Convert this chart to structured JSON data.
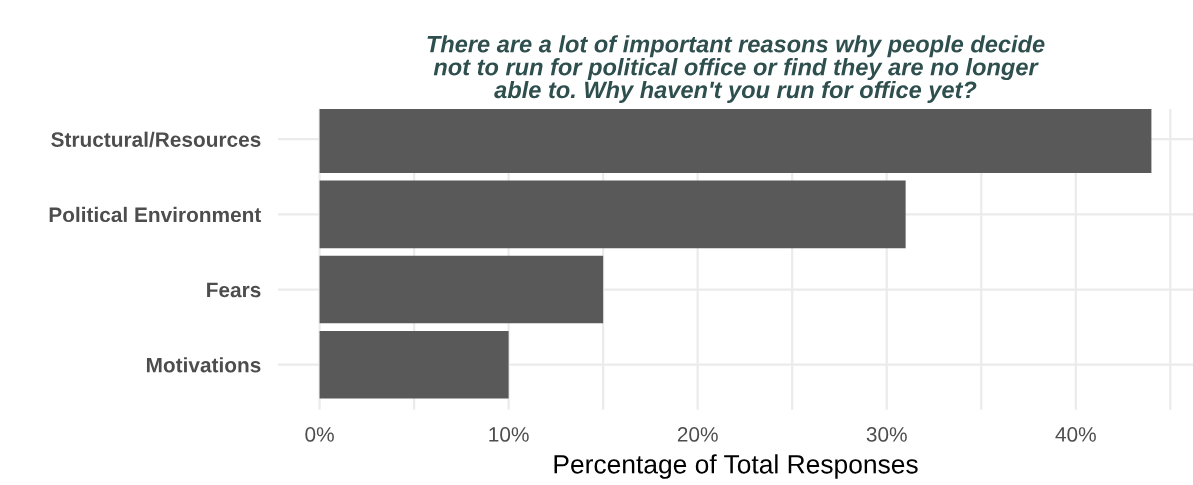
{
  "chart_data": {
    "type": "bar",
    "orientation": "horizontal",
    "title": "There are a lot of important reasons why people decide\nnot to run for political office or find they are no longer\nable to. Why haven't you run for office yet?",
    "xlabel": "Percentage of Total Responses",
    "categories": [
      "Structural/Resources",
      "Political Environment",
      "Fears",
      "Motivations"
    ],
    "values": [
      44,
      31,
      15,
      10
    ],
    "color": "#595959",
    "xlim": [
      -2.2,
      46.2
    ],
    "xticks": [
      {
        "value": 0,
        "label": "0%"
      },
      {
        "value": 5,
        "label": null
      },
      {
        "value": 10,
        "label": "10%"
      },
      {
        "value": 15,
        "label": null
      },
      {
        "value": 20,
        "label": "20%"
      },
      {
        "value": 25,
        "label": null
      },
      {
        "value": 30,
        "label": "30%"
      },
      {
        "value": 35,
        "label": null
      },
      {
        "value": 40,
        "label": "40%"
      },
      {
        "value": 45,
        "label": null
      }
    ],
    "grid": true
  }
}
